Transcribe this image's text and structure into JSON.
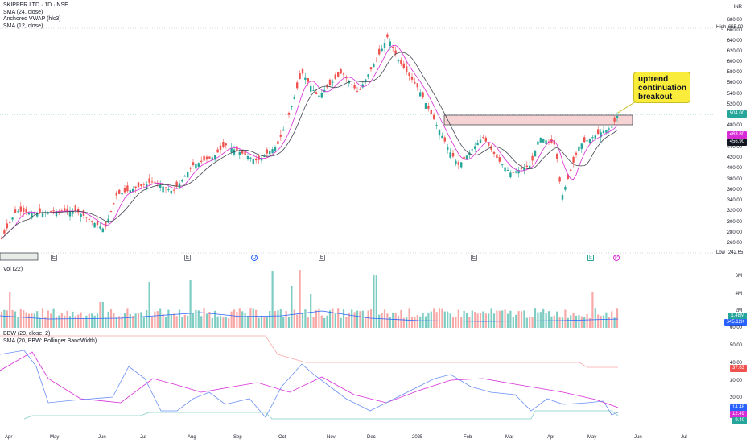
{
  "main": {
    "title": "SKIPPER LTD · 1D · NSE",
    "indicators": [
      "SMA (24, close)",
      "Anchored VWAP (hlc3)",
      "SMA (12, close)"
    ],
    "currency": "INR",
    "price_axis": [
      "680.00",
      "660.00",
      "640.00",
      "620.00",
      "600.00",
      "580.00",
      "560.00",
      "540.00",
      "520.00",
      "480.00",
      "460.00",
      "440.00",
      "420.00",
      "400.00",
      "380.00",
      "360.00",
      "340.00",
      "320.00",
      "300.00",
      "280.00",
      "260.00"
    ],
    "high_label": "High",
    "high_value": "665.00",
    "low_label": "Low",
    "low_value": "242.65",
    "last_price": "504.00",
    "sma_tag": "463.80",
    "vwap_tag": "456.90",
    "callout": "uptrend continuation breakout",
    "events": [
      "E",
      "E",
      "D",
      "E",
      "E",
      "E",
      "P"
    ],
    "colors": {
      "up": "#26a69a",
      "down": "#ef5350",
      "sma24": "#434651",
      "sma12": "#d82cd6",
      "vwap": "#2962ff",
      "box": "#f7c9c9"
    }
  },
  "volume": {
    "title": "Vol (22)",
    "axis": [
      "6M",
      "4M",
      "2M"
    ],
    "tag_vol": "1.48M",
    "tag_ma": "645.12K",
    "cut": "60.00"
  },
  "bbw": {
    "title": "BBW (20, close, 2)",
    "subtitle": "SMA (20, BBW: Bollinger BandWidth)",
    "axis": [
      "50.00",
      "40.00",
      "30.00",
      "20.00",
      "10.00"
    ],
    "tag_red": "37.63",
    "tag_blue": "14.48",
    "tag_purple": "12.49",
    "tag_teal": "9.40"
  },
  "xaxis": [
    "Apr",
    "May",
    "Jun",
    "Jul",
    "Aug",
    "Sep",
    "Oct",
    "Nov",
    "Dec",
    "2025",
    "Feb",
    "Mar",
    "Apr",
    "May",
    "Jun",
    "Jul"
  ]
}
